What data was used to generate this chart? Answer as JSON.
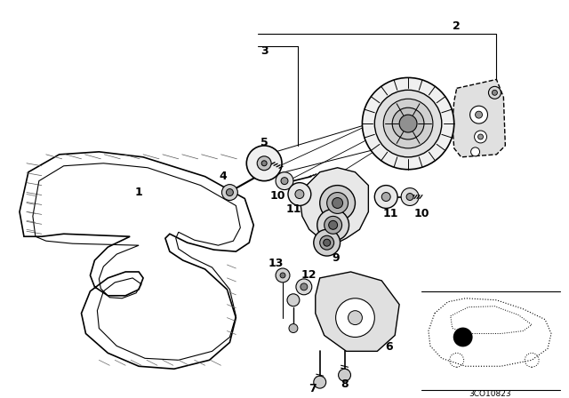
{
  "background_color": "#ffffff",
  "line_color": "#000000",
  "figsize": [
    6.4,
    4.48
  ],
  "dpi": 100,
  "belt_color": "#f0f0f0",
  "part_color": "#e8e8e8",
  "car_code": "3CO10823"
}
